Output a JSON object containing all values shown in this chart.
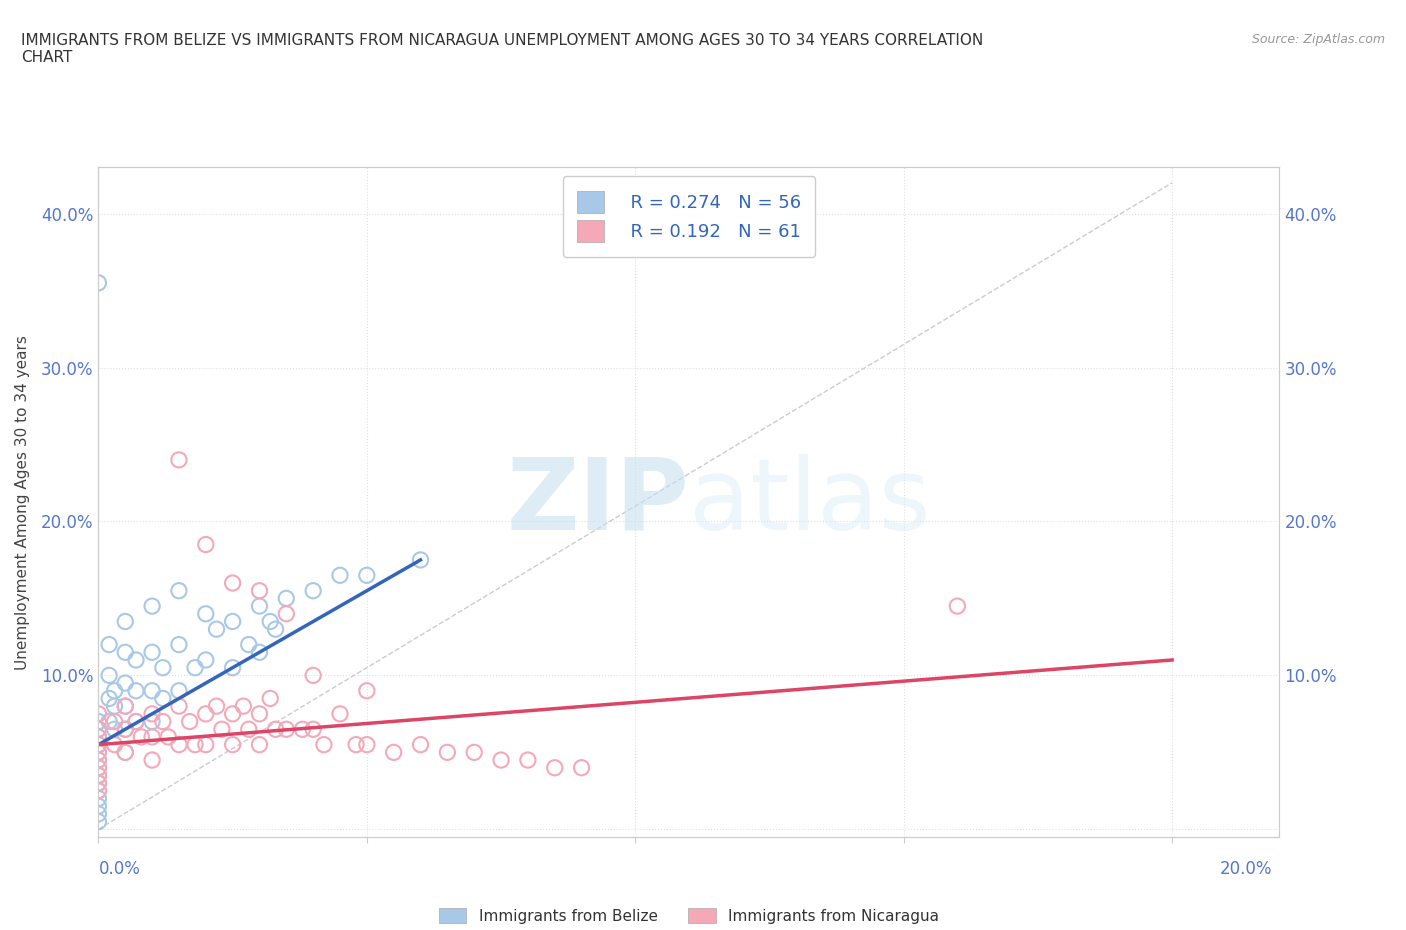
{
  "title": "IMMIGRANTS FROM BELIZE VS IMMIGRANTS FROM NICARAGUA UNEMPLOYMENT AMONG AGES 30 TO 34 YEARS CORRELATION\nCHART",
  "source_text": "Source: ZipAtlas.com",
  "ylabel": "Unemployment Among Ages 30 to 34 years",
  "xlim": [
    0.0,
    0.22
  ],
  "ylim": [
    -0.005,
    0.43
  ],
  "belize_color": "#a8c8e8",
  "nicaragua_color": "#f4a8b8",
  "belize_line_color": "#3366bb",
  "nicaragua_line_color": "#dd4466",
  "belize_R": 0.274,
  "belize_N": 56,
  "nicaragua_R": 0.192,
  "nicaragua_N": 61,
  "watermark_zip": "ZIP",
  "watermark_atlas": "atlas",
  "background_color": "#ffffff",
  "grid_color": "#e0e0e0",
  "belize_scatter_x": [
    0.0,
    0.0,
    0.0,
    0.0,
    0.0,
    0.0,
    0.0,
    0.0,
    0.0,
    0.0,
    0.0,
    0.0,
    0.0,
    0.0,
    0.0,
    0.002,
    0.002,
    0.002,
    0.002,
    0.003,
    0.003,
    0.003,
    0.005,
    0.005,
    0.005,
    0.005,
    0.005,
    0.005,
    0.007,
    0.007,
    0.007,
    0.01,
    0.01,
    0.01,
    0.01,
    0.012,
    0.012,
    0.015,
    0.015,
    0.015,
    0.018,
    0.02,
    0.02,
    0.022,
    0.025,
    0.025,
    0.028,
    0.03,
    0.03,
    0.032,
    0.033,
    0.035,
    0.04,
    0.045,
    0.05,
    0.06
  ],
  "belize_scatter_y": [
    0.355,
    0.07,
    0.065,
    0.06,
    0.055,
    0.05,
    0.045,
    0.04,
    0.035,
    0.03,
    0.025,
    0.02,
    0.015,
    0.01,
    0.005,
    0.12,
    0.1,
    0.085,
    0.07,
    0.09,
    0.08,
    0.065,
    0.135,
    0.115,
    0.095,
    0.08,
    0.065,
    0.05,
    0.11,
    0.09,
    0.07,
    0.145,
    0.115,
    0.09,
    0.07,
    0.105,
    0.085,
    0.155,
    0.12,
    0.09,
    0.105,
    0.14,
    0.11,
    0.13,
    0.135,
    0.105,
    0.12,
    0.145,
    0.115,
    0.135,
    0.13,
    0.15,
    0.155,
    0.165,
    0.165,
    0.175
  ],
  "nicaragua_scatter_x": [
    0.0,
    0.0,
    0.0,
    0.0,
    0.0,
    0.0,
    0.0,
    0.0,
    0.0,
    0.0,
    0.003,
    0.003,
    0.005,
    0.005,
    0.005,
    0.007,
    0.008,
    0.01,
    0.01,
    0.01,
    0.012,
    0.013,
    0.015,
    0.015,
    0.015,
    0.017,
    0.018,
    0.02,
    0.02,
    0.02,
    0.022,
    0.023,
    0.025,
    0.025,
    0.025,
    0.027,
    0.028,
    0.03,
    0.03,
    0.03,
    0.032,
    0.033,
    0.035,
    0.035,
    0.038,
    0.04,
    0.04,
    0.042,
    0.045,
    0.048,
    0.05,
    0.05,
    0.055,
    0.06,
    0.065,
    0.07,
    0.075,
    0.08,
    0.085,
    0.09,
    0.16
  ],
  "nicaragua_scatter_y": [
    0.075,
    0.065,
    0.06,
    0.055,
    0.05,
    0.045,
    0.04,
    0.035,
    0.03,
    0.025,
    0.07,
    0.055,
    0.08,
    0.065,
    0.05,
    0.07,
    0.06,
    0.075,
    0.06,
    0.045,
    0.07,
    0.06,
    0.24,
    0.08,
    0.055,
    0.07,
    0.055,
    0.185,
    0.075,
    0.055,
    0.08,
    0.065,
    0.16,
    0.075,
    0.055,
    0.08,
    0.065,
    0.155,
    0.075,
    0.055,
    0.085,
    0.065,
    0.14,
    0.065,
    0.065,
    0.1,
    0.065,
    0.055,
    0.075,
    0.055,
    0.09,
    0.055,
    0.05,
    0.055,
    0.05,
    0.05,
    0.045,
    0.045,
    0.04,
    0.04,
    0.145
  ]
}
